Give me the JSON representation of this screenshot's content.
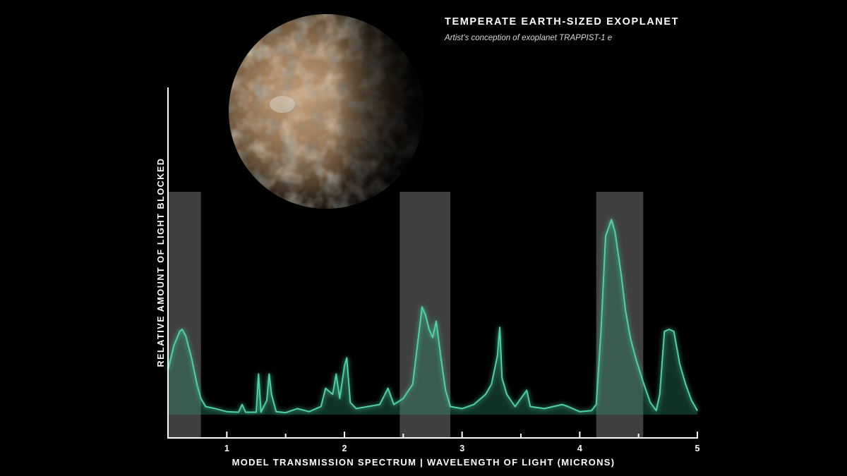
{
  "header": {
    "title": "TEMPERATE EARTH-SIZED EXOPLANET",
    "subtitle": "Artist’s conception of exoplanet TRAPPIST-1 e"
  },
  "colors": {
    "background": "#000000",
    "spectrum_line": "#4fd1a8",
    "spectrum_fill": "#2f8f72",
    "highlight_band": "#4a4a4a",
    "axis": "#ffffff"
  },
  "planet": {
    "icon": "exoplanet-illustration-icon"
  },
  "chart_data": {
    "type": "area",
    "xlabel": "MODEL TRANSMISSION SPECTRUM | WAVELENGTH OF LIGHT (MICRONS)",
    "ylabel": "RELATIVE AMOUNT OF LIGHT BLOCKED",
    "xlim": [
      0.5,
      5.0
    ],
    "ylim": [
      0,
      1.0
    ],
    "grid": false,
    "x_ticks": [
      1,
      2,
      3,
      4,
      5
    ],
    "x_minor_ticks": [
      1.5,
      2.5,
      3.5,
      4.5
    ],
    "highlight_bands": [
      {
        "x0": 0.5,
        "x1": 0.78,
        "height": 1.0
      },
      {
        "x0": 2.47,
        "x1": 2.9,
        "height": 1.0
      },
      {
        "x0": 4.14,
        "x1": 4.54,
        "height": 1.0
      }
    ],
    "series": [
      {
        "points": [
          [
            0.5,
            0.22
          ],
          [
            0.55,
            0.34
          ],
          [
            0.6,
            0.41
          ],
          [
            0.62,
            0.42
          ],
          [
            0.65,
            0.39
          ],
          [
            0.7,
            0.28
          ],
          [
            0.75,
            0.14
          ],
          [
            0.78,
            0.08
          ],
          [
            0.82,
            0.04
          ],
          [
            0.9,
            0.03
          ],
          [
            1.0,
            0.015
          ],
          [
            1.1,
            0.012
          ],
          [
            1.13,
            0.05
          ],
          [
            1.16,
            0.012
          ],
          [
            1.25,
            0.012
          ],
          [
            1.27,
            0.2
          ],
          [
            1.29,
            0.012
          ],
          [
            1.34,
            0.07
          ],
          [
            1.36,
            0.2
          ],
          [
            1.38,
            0.1
          ],
          [
            1.42,
            0.015
          ],
          [
            1.5,
            0.01
          ],
          [
            1.6,
            0.03
          ],
          [
            1.7,
            0.015
          ],
          [
            1.8,
            0.04
          ],
          [
            1.84,
            0.13
          ],
          [
            1.9,
            0.1
          ],
          [
            1.93,
            0.2
          ],
          [
            1.96,
            0.08
          ],
          [
            2.0,
            0.24
          ],
          [
            2.02,
            0.28
          ],
          [
            2.05,
            0.06
          ],
          [
            2.1,
            0.03
          ],
          [
            2.2,
            0.04
          ],
          [
            2.3,
            0.05
          ],
          [
            2.37,
            0.13
          ],
          [
            2.42,
            0.05
          ],
          [
            2.5,
            0.08
          ],
          [
            2.58,
            0.15
          ],
          [
            2.62,
            0.34
          ],
          [
            2.66,
            0.53
          ],
          [
            2.69,
            0.49
          ],
          [
            2.72,
            0.42
          ],
          [
            2.75,
            0.38
          ],
          [
            2.78,
            0.46
          ],
          [
            2.82,
            0.28
          ],
          [
            2.86,
            0.12
          ],
          [
            2.9,
            0.04
          ],
          [
            3.0,
            0.03
          ],
          [
            3.1,
            0.05
          ],
          [
            3.2,
            0.1
          ],
          [
            3.25,
            0.15
          ],
          [
            3.3,
            0.29
          ],
          [
            3.32,
            0.43
          ],
          [
            3.34,
            0.18
          ],
          [
            3.38,
            0.1
          ],
          [
            3.45,
            0.04
          ],
          [
            3.55,
            0.12
          ],
          [
            3.58,
            0.04
          ],
          [
            3.7,
            0.03
          ],
          [
            3.85,
            0.05
          ],
          [
            3.9,
            0.04
          ],
          [
            4.0,
            0.015
          ],
          [
            4.1,
            0.02
          ],
          [
            4.14,
            0.05
          ],
          [
            4.18,
            0.4
          ],
          [
            4.22,
            0.88
          ],
          [
            4.27,
            0.96
          ],
          [
            4.3,
            0.9
          ],
          [
            4.35,
            0.7
          ],
          [
            4.39,
            0.51
          ],
          [
            4.43,
            0.38
          ],
          [
            4.48,
            0.27
          ],
          [
            4.54,
            0.16
          ],
          [
            4.6,
            0.06
          ],
          [
            4.65,
            0.02
          ],
          [
            4.68,
            0.1
          ],
          [
            4.72,
            0.41
          ],
          [
            4.76,
            0.42
          ],
          [
            4.8,
            0.41
          ],
          [
            4.85,
            0.25
          ],
          [
            4.9,
            0.15
          ],
          [
            4.95,
            0.07
          ],
          [
            5.0,
            0.02
          ]
        ]
      }
    ]
  }
}
